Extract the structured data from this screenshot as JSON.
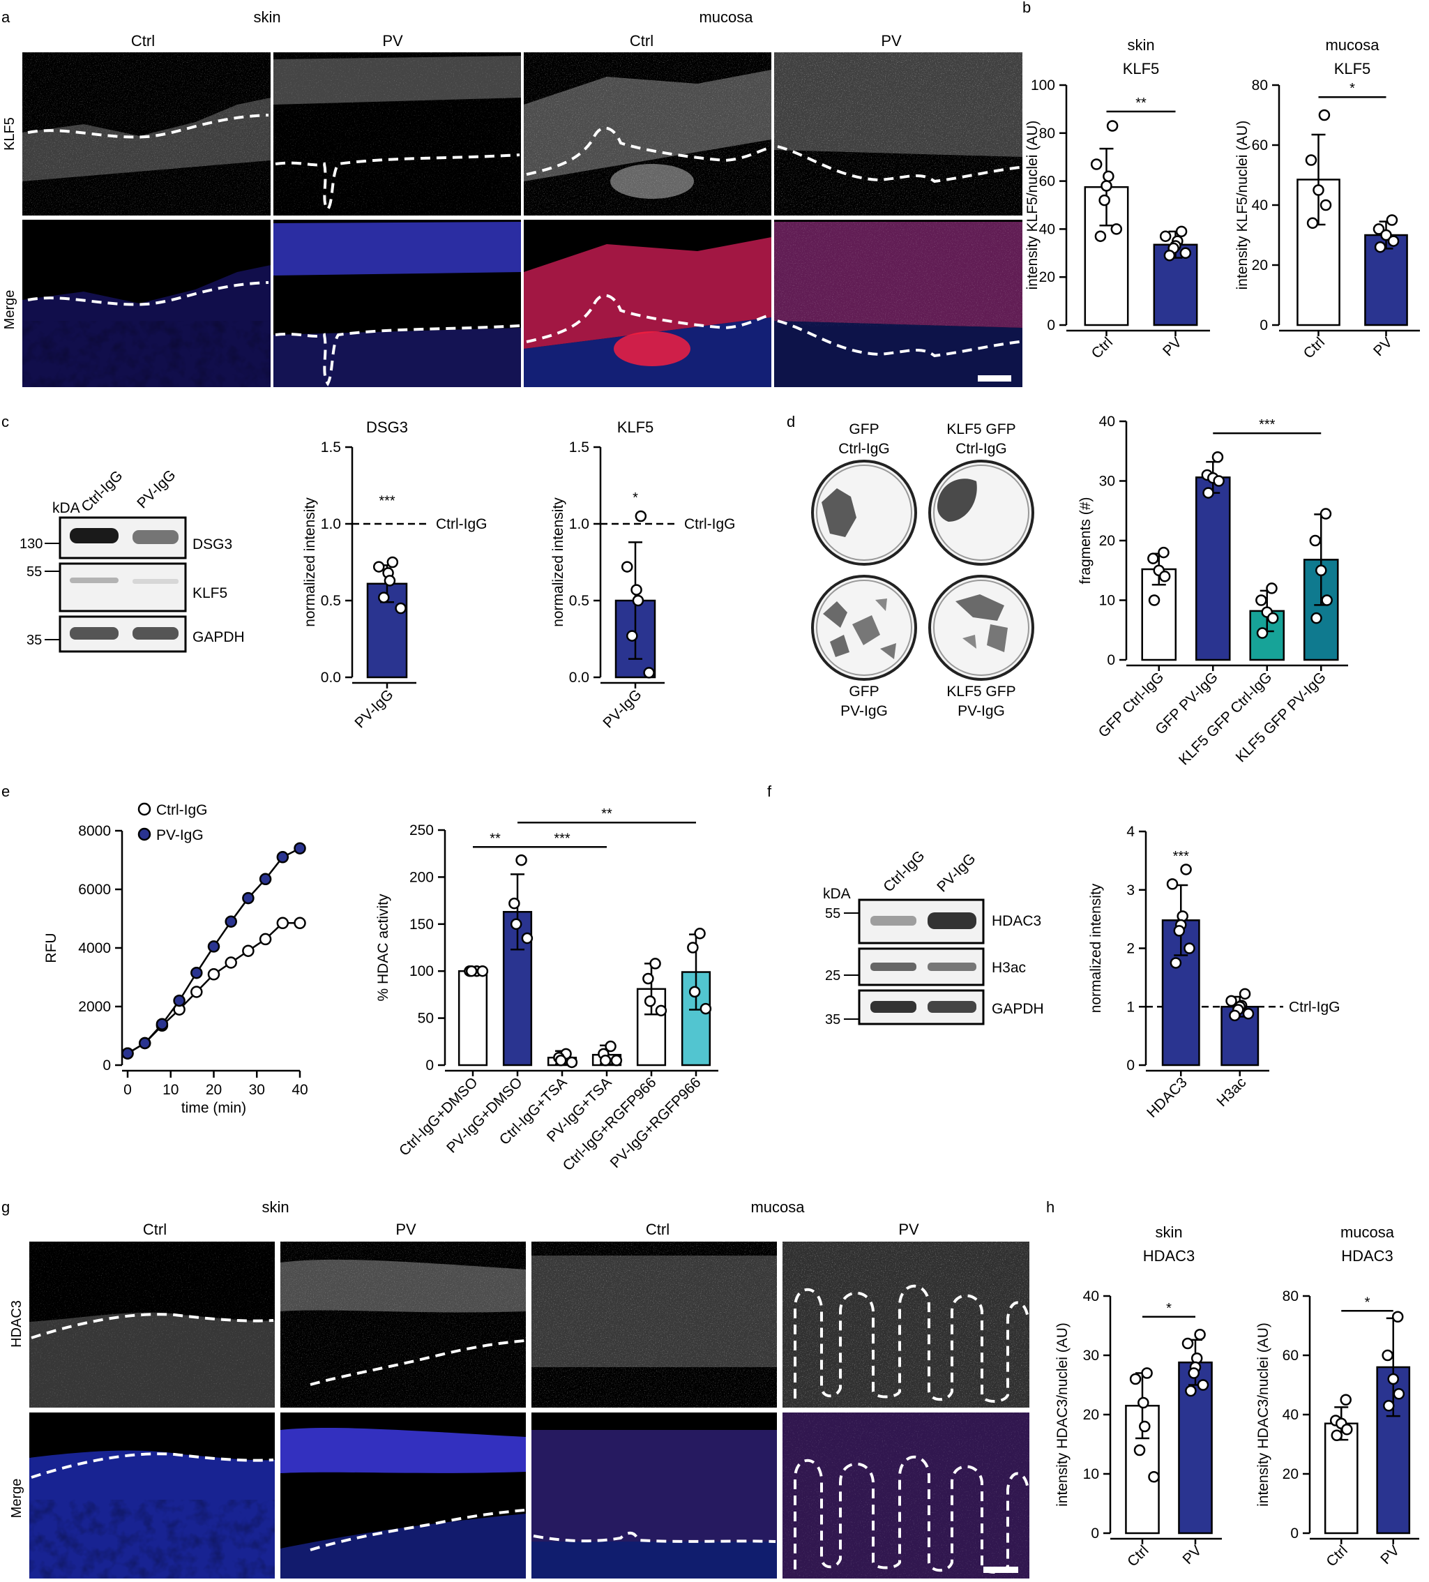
{
  "colors": {
    "pv_blue": "#2a3490",
    "teal": "#17a398",
    "dark_teal": "#0f7a8f",
    "light_cyan": "#52c5d0",
    "nuclei_blue": "#2b34d8",
    "stain_red": "#ff2a55"
  },
  "panels": {
    "a": {
      "letter": "a",
      "group_left": "skin",
      "group_right": "mucosa",
      "col_labels": [
        "Ctrl",
        "PV",
        "Ctrl",
        "PV"
      ],
      "row_labels": [
        "KLF5",
        "Merge"
      ]
    },
    "b": {
      "letter": "b"
    },
    "c": {
      "letter": "c",
      "kda_label": "kDA",
      "lanes": [
        "Ctrl-IgG",
        "PV-IgG"
      ],
      "bands": [
        {
          "name": "DSG3",
          "kda": "130"
        },
        {
          "name": "KLF5",
          "kda": "55"
        },
        {
          "name": "GAPDH",
          "kda": "35"
        }
      ]
    },
    "d": {
      "letter": "d",
      "wells": [
        {
          "top": "GFP",
          "bottom": "Ctrl-IgG"
        },
        {
          "top": "KLF5 GFP",
          "bottom": "Ctrl-IgG"
        },
        {
          "top": "GFP",
          "bottom": "PV-IgG"
        },
        {
          "top": "KLF5 GFP",
          "bottom": "PV-IgG"
        }
      ]
    },
    "e": {
      "letter": "e"
    },
    "f": {
      "letter": "f",
      "kda_label": "kDA",
      "lanes": [
        "Ctrl-IgG",
        "PV-IgG"
      ],
      "bands": [
        {
          "name": "HDAC3",
          "kda": "55"
        },
        {
          "name": "H3ac",
          "kda": "25"
        },
        {
          "name": "GAPDH",
          "kda": "35"
        }
      ]
    },
    "g": {
      "letter": "g",
      "group_left": "skin",
      "group_right": "mucosa",
      "col_labels": [
        "Ctrl",
        "PV",
        "Ctrl",
        "PV"
      ],
      "row_labels": [
        "HDAC3",
        "Merge"
      ]
    },
    "h": {
      "letter": "h"
    }
  },
  "chart_data": [
    {
      "id": "b_skin",
      "type": "bar",
      "title": [
        "skin",
        "KLF5"
      ],
      "ylabel": "intensity KLF5/nuclei (AU)",
      "categories": [
        "Ctrl",
        "PV"
      ],
      "values": [
        57.5,
        33.5
      ],
      "errors": [
        16,
        5.5
      ],
      "points": [
        [
          83,
          67,
          62,
          58,
          52,
          40,
          37
        ],
        [
          39,
          37,
          35,
          33,
          32,
          30,
          29
        ]
      ],
      "fills": [
        "#ffffff",
        "#2a3490"
      ],
      "ylim": [
        0,
        100
      ],
      "yticks": [
        0,
        20,
        40,
        60,
        80,
        100
      ],
      "sig": [
        {
          "from": 0,
          "to": 1,
          "label": "**",
          "y": 89
        }
      ]
    },
    {
      "id": "b_mucosa",
      "type": "bar",
      "title": [
        "mucosa",
        "KLF5"
      ],
      "ylabel": "intensity KLF5/nuclei (AU)",
      "categories": [
        "Ctrl",
        "PV"
      ],
      "values": [
        48.5,
        30
      ],
      "errors": [
        15,
        4.5
      ],
      "points": [
        [
          70,
          55,
          45,
          40,
          34
        ],
        [
          35,
          32,
          30,
          28,
          26
        ]
      ],
      "fills": [
        "#ffffff",
        "#2a3490"
      ],
      "ylim": [
        0,
        80
      ],
      "yticks": [
        0,
        20,
        40,
        60,
        80
      ],
      "sig": [
        {
          "from": 0,
          "to": 1,
          "label": "*",
          "y": 76
        }
      ]
    },
    {
      "id": "c_dsg3",
      "type": "bar",
      "title": [
        "DSG3"
      ],
      "ylabel": "normalized intensity",
      "categories": [
        "PV-IgG"
      ],
      "values": [
        0.61
      ],
      "errors": [
        0.12
      ],
      "points": [
        [
          0.75,
          0.72,
          0.68,
          0.63,
          0.52,
          0.45
        ]
      ],
      "fills": [
        "#2a3490"
      ],
      "ylim": [
        0,
        1.5
      ],
      "yticks": [
        0.0,
        0.5,
        1.0,
        1.5
      ],
      "tick_decimals": 1,
      "ref_line": {
        "y": 1.0,
        "label": "Ctrl-IgG"
      },
      "bar_labels": [
        {
          "index": 0,
          "label": "***",
          "y": 1.12
        }
      ]
    },
    {
      "id": "c_klf5",
      "type": "bar",
      "title": [
        "KLF5"
      ],
      "ylabel": "normalized intensity",
      "categories": [
        "PV-IgG"
      ],
      "values": [
        0.5
      ],
      "errors": [
        0.38
      ],
      "points": [
        [
          1.05,
          0.72,
          0.57,
          0.5,
          0.27,
          0.03
        ]
      ],
      "fills": [
        "#2a3490"
      ],
      "ylim": [
        0,
        1.5
      ],
      "yticks": [
        0.0,
        0.5,
        1.0,
        1.5
      ],
      "tick_decimals": 1,
      "ref_line": {
        "y": 1.0,
        "label": "Ctrl-IgG"
      },
      "bar_labels": [
        {
          "index": 0,
          "label": "*",
          "y": 1.14
        }
      ]
    },
    {
      "id": "d_fragments",
      "type": "bar",
      "ylabel": "fragments (#)",
      "categories": [
        "GFP Ctrl-IgG",
        "GFP PV-IgG",
        "KLF5 GFP Ctrl-IgG",
        "KLF5 GFP PV-IgG"
      ],
      "values": [
        15.2,
        30.6,
        8.2,
        16.8
      ],
      "errors": [
        2.6,
        2.6,
        3.4,
        7.6
      ],
      "points": [
        [
          18,
          17,
          15,
          14,
          10
        ],
        [
          34,
          31,
          30.5,
          30,
          28
        ],
        [
          12,
          10,
          8,
          7,
          4.5
        ],
        [
          24.5,
          20,
          15,
          10,
          7
        ]
      ],
      "fills": [
        "#ffffff",
        "#2a3490",
        "#17a398",
        "#0f7a8f"
      ],
      "ylim": [
        0,
        40
      ],
      "yticks": [
        0,
        10,
        20,
        30,
        40
      ],
      "rotate_xlabels": true,
      "sig": [
        {
          "from": 1,
          "to": 3,
          "label": "***",
          "y": 38
        }
      ]
    },
    {
      "id": "e_rfu",
      "type": "line",
      "ylabel": "RFU",
      "xlabel": "time (min)",
      "xlim": [
        0,
        40
      ],
      "ylim": [
        0,
        8000
      ],
      "xticks": [
        0,
        10,
        20,
        30,
        40
      ],
      "yticks": [
        0,
        2000,
        4000,
        6000,
        8000
      ],
      "series": [
        {
          "name": "Ctrl-IgG",
          "fill": "#ffffff",
          "x": [
            0,
            4,
            8,
            12,
            16,
            20,
            24,
            28,
            32,
            36,
            40
          ],
          "y": [
            400,
            750,
            1350,
            1900,
            2500,
            3100,
            3500,
            3900,
            4300,
            4850,
            4850
          ]
        },
        {
          "name": "PV-IgG",
          "fill": "#2a3490",
          "x": [
            0,
            4,
            8,
            12,
            16,
            20,
            24,
            28,
            32,
            36,
            40
          ],
          "y": [
            400,
            750,
            1400,
            2200,
            3150,
            4050,
            4900,
            5700,
            6350,
            7100,
            7400
          ]
        }
      ]
    },
    {
      "id": "e_hdac",
      "type": "bar",
      "ylabel": "% HDAC activity",
      "categories": [
        "Ctrl-IgG+DMSO",
        "PV-IgG+DMSO",
        "Ctrl-IgG+TSA",
        "PV-IgG+TSA",
        "Ctrl-IgG+RGFP966",
        "PV-IgG+RGFP966"
      ],
      "values": [
        100,
        163,
        8,
        11,
        81,
        99
      ],
      "errors": [
        1.5,
        40,
        7,
        10,
        27,
        40
      ],
      "points": [
        [
          100,
          100,
          100,
          100
        ],
        [
          218,
          172,
          150,
          135
        ],
        [
          12,
          8,
          5,
          3
        ],
        [
          20,
          12,
          5,
          5
        ],
        [
          108,
          92,
          68,
          58
        ],
        [
          140,
          125,
          78,
          60
        ]
      ],
      "fills": [
        "#ffffff",
        "#2a3490",
        "#ffffff",
        "#ffffff",
        "#ffffff",
        "#52c5d0"
      ],
      "ylim": [
        0,
        250
      ],
      "yticks": [
        0,
        50,
        100,
        150,
        200,
        250
      ],
      "rotate_xlabels": true,
      "sig": [
        {
          "from": 0,
          "to": 1,
          "label": "**",
          "y": 232
        },
        {
          "from": 1,
          "to": 3,
          "label": "***",
          "y": 232
        },
        {
          "from": 1,
          "to": 5,
          "label": "**",
          "y": 258
        }
      ]
    },
    {
      "id": "f_norm",
      "type": "bar",
      "ylabel": "normalized intensity",
      "categories": [
        "HDAC3",
        "H3ac"
      ],
      "values": [
        2.48,
        1.0
      ],
      "errors": [
        0.6,
        0.17
      ],
      "points": [
        [
          3.35,
          3.1,
          2.55,
          2.4,
          2.3,
          2.0,
          1.75
        ],
        [
          1.22,
          1.1,
          1.02,
          1.0,
          0.95,
          0.88,
          0.85
        ]
      ],
      "fills": [
        "#2a3490",
        "#2a3490"
      ],
      "ylim": [
        0,
        4
      ],
      "yticks": [
        0,
        1,
        2,
        3,
        4
      ],
      "ref_line": {
        "y": 1.0,
        "label": "Ctrl-IgG"
      },
      "bar_labels": [
        {
          "index": 0,
          "label": "***",
          "y": 3.5
        }
      ]
    },
    {
      "id": "h_skin",
      "type": "bar",
      "title": [
        "skin",
        "HDAC3"
      ],
      "ylabel": "intensity HDAC3/nuclei (AU)",
      "categories": [
        "Ctrl",
        "PV"
      ],
      "values": [
        21.5,
        28.8
      ],
      "errors": [
        5.5,
        3.8
      ],
      "points": [
        [
          27,
          26,
          22,
          18,
          14,
          9.5
        ],
        [
          33.5,
          32,
          29.5,
          28,
          27,
          25,
          24
        ]
      ],
      "fills": [
        "#ffffff",
        "#2a3490"
      ],
      "ylim": [
        0,
        40
      ],
      "yticks": [
        0,
        10,
        20,
        30,
        40
      ],
      "sig": [
        {
          "from": 0,
          "to": 1,
          "label": "*",
          "y": 36.5
        }
      ]
    },
    {
      "id": "h_mucosa",
      "type": "bar",
      "title": [
        "mucosa",
        "HDAC3"
      ],
      "ylabel": "intensity HDAC3/nuclei (AU)",
      "categories": [
        "Ctrl",
        "PV"
      ],
      "values": [
        37,
        56
      ],
      "errors": [
        5.5,
        16.5
      ],
      "points": [
        [
          45,
          38,
          37,
          35,
          33
        ],
        [
          73,
          60,
          52,
          47,
          43
        ]
      ],
      "fills": [
        "#ffffff",
        "#2a3490"
      ],
      "ylim": [
        0,
        80
      ],
      "yticks": [
        0,
        20,
        40,
        60,
        80
      ],
      "sig": [
        {
          "from": 0,
          "to": 1,
          "label": "*",
          "y": 75
        }
      ]
    }
  ]
}
